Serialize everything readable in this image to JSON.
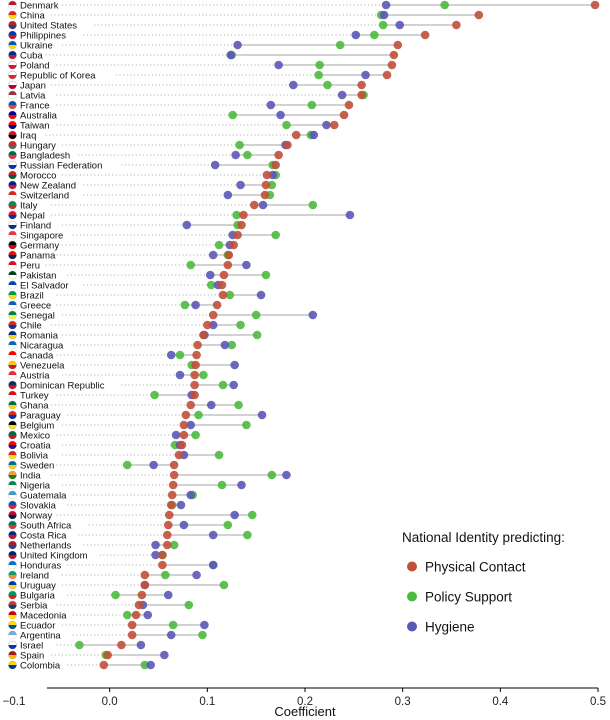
{
  "chart_data": {
    "type": "scatter",
    "xlabel": "Coefficient",
    "xlim": [
      -0.1,
      0.5
    ],
    "xticks": [
      -0.1,
      0.0,
      0.1,
      0.2,
      0.3,
      0.4,
      0.5
    ],
    "xtick_labels": [
      "−0.1",
      "0.0",
      "0.1",
      "0.2",
      "0.3",
      "0.4",
      "0.5"
    ],
    "legend": {
      "title": "National Identity predicting:",
      "placement": "bottom-right"
    },
    "series": [
      {
        "key": "physical",
        "name": "Physical Contact",
        "color": "#c0503a"
      },
      {
        "key": "policy",
        "name": "Policy Support",
        "color": "#4cba3f"
      },
      {
        "key": "hygiene",
        "name": "Hygiene",
        "color": "#5b58b6"
      }
    ],
    "countries": [
      {
        "name": "Denmark",
        "flag": [
          "#c8102e",
          "#ffffff"
        ],
        "physical": 0.497,
        "policy": 0.343,
        "hygiene": 0.283
      },
      {
        "name": "China",
        "flag": [
          "#de2910",
          "#ffde00"
        ],
        "physical": 0.378,
        "policy": 0.278,
        "hygiene": 0.281
      },
      {
        "name": "United States",
        "flag": [
          "#b22234",
          "#3c3b6e"
        ],
        "physical": 0.355,
        "policy": 0.28,
        "hygiene": 0.297
      },
      {
        "name": "Philippines",
        "flag": [
          "#0038a8",
          "#ce1126"
        ],
        "physical": 0.323,
        "policy": 0.271,
        "hygiene": 0.252
      },
      {
        "name": "Ukraine",
        "flag": [
          "#0057b7",
          "#ffd700"
        ],
        "physical": 0.295,
        "policy": 0.236,
        "hygiene": 0.131
      },
      {
        "name": "Cuba",
        "flag": [
          "#002a8f",
          "#cf142b"
        ],
        "physical": 0.291,
        "policy": 0.125,
        "hygiene": 0.124
      },
      {
        "name": "Poland",
        "flag": [
          "#ffffff",
          "#dc143c"
        ],
        "physical": 0.289,
        "policy": 0.215,
        "hygiene": 0.173
      },
      {
        "name": "Republic of Korea",
        "flag": [
          "#ffffff",
          "#cd2e3a"
        ],
        "physical": 0.284,
        "policy": 0.214,
        "hygiene": 0.262
      },
      {
        "name": "Japan",
        "flag": [
          "#ffffff",
          "#bc002d"
        ],
        "physical": 0.258,
        "policy": 0.223,
        "hygiene": 0.188
      },
      {
        "name": "Latvia",
        "flag": [
          "#9e3039",
          "#ffffff"
        ],
        "physical": 0.258,
        "policy": 0.26,
        "hygiene": 0.238
      },
      {
        "name": "France",
        "flag": [
          "#0055a4",
          "#ef4135"
        ],
        "physical": 0.245,
        "policy": 0.207,
        "hygiene": 0.165
      },
      {
        "name": "Australia",
        "flag": [
          "#00008b",
          "#ff0000"
        ],
        "physical": 0.24,
        "policy": 0.126,
        "hygiene": 0.175
      },
      {
        "name": "Taiwan",
        "flag": [
          "#fe0000",
          "#000095"
        ],
        "physical": 0.23,
        "policy": 0.181,
        "hygiene": 0.222
      },
      {
        "name": "Iraq",
        "flag": [
          "#ce1126",
          "#000000"
        ],
        "physical": 0.191,
        "policy": 0.206,
        "hygiene": 0.209
      },
      {
        "name": "Hungary",
        "flag": [
          "#ce2939",
          "#477050"
        ],
        "physical": 0.182,
        "policy": 0.133,
        "hygiene": 0.18
      },
      {
        "name": "Bangladesh",
        "flag": [
          "#006a4e",
          "#f42a41"
        ],
        "physical": 0.173,
        "policy": 0.141,
        "hygiene": 0.129
      },
      {
        "name": "Russian Federation",
        "flag": [
          "#ffffff",
          "#0039a6"
        ],
        "physical": 0.17,
        "policy": 0.167,
        "hygiene": 0.108
      },
      {
        "name": "Morocco",
        "flag": [
          "#c1272d",
          "#006233"
        ],
        "physical": 0.161,
        "policy": 0.17,
        "hygiene": 0.167
      },
      {
        "name": "New Zealand",
        "flag": [
          "#00247d",
          "#cc142b"
        ],
        "physical": 0.16,
        "policy": 0.166,
        "hygiene": 0.134
      },
      {
        "name": "Switzerland",
        "flag": [
          "#da291c",
          "#ffffff"
        ],
        "physical": 0.159,
        "policy": 0.164,
        "hygiene": 0.121
      },
      {
        "name": "Italy",
        "flag": [
          "#009246",
          "#ce2b37"
        ],
        "physical": 0.148,
        "policy": 0.208,
        "hygiene": 0.157
      },
      {
        "name": "Nepal",
        "flag": [
          "#dc143c",
          "#003893"
        ],
        "physical": 0.137,
        "policy": 0.13,
        "hygiene": 0.246
      },
      {
        "name": "Finland",
        "flag": [
          "#ffffff",
          "#003580"
        ],
        "physical": 0.135,
        "policy": 0.131,
        "hygiene": 0.079
      },
      {
        "name": "Singapore",
        "flag": [
          "#ef3340",
          "#ffffff"
        ],
        "physical": 0.131,
        "policy": 0.17,
        "hygiene": 0.126
      },
      {
        "name": "Germany",
        "flag": [
          "#000000",
          "#dd0000"
        ],
        "physical": 0.127,
        "policy": 0.112,
        "hygiene": 0.123
      },
      {
        "name": "Panama",
        "flag": [
          "#da121a",
          "#072357"
        ],
        "physical": 0.122,
        "policy": 0.121,
        "hygiene": 0.106
      },
      {
        "name": "Peru",
        "flag": [
          "#d91023",
          "#ffffff"
        ],
        "physical": 0.121,
        "policy": 0.083,
        "hygiene": 0.14
      },
      {
        "name": "Pakistan",
        "flag": [
          "#01411c",
          "#ffffff"
        ],
        "physical": 0.117,
        "policy": 0.16,
        "hygiene": 0.103
      },
      {
        "name": "El Salvador",
        "flag": [
          "#0047ab",
          "#ffffff"
        ],
        "physical": 0.115,
        "policy": 0.104,
        "hygiene": 0.111
      },
      {
        "name": "Brazil",
        "flag": [
          "#009c3b",
          "#ffdf00"
        ],
        "physical": 0.116,
        "policy": 0.123,
        "hygiene": 0.155
      },
      {
        "name": "Greece",
        "flag": [
          "#0d5eaf",
          "#ffffff"
        ],
        "physical": 0.11,
        "policy": 0.077,
        "hygiene": 0.088
      },
      {
        "name": "Senegal",
        "flag": [
          "#00853f",
          "#fdef42"
        ],
        "physical": 0.106,
        "policy": 0.15,
        "hygiene": 0.208
      },
      {
        "name": "Chile",
        "flag": [
          "#d52b1e",
          "#0039a6"
        ],
        "physical": 0.1,
        "policy": 0.134,
        "hygiene": 0.106
      },
      {
        "name": "Romania",
        "flag": [
          "#002b7f",
          "#fcd116"
        ],
        "physical": 0.096,
        "policy": 0.151,
        "hygiene": 0.097
      },
      {
        "name": "Nicaragua",
        "flag": [
          "#0067c6",
          "#ffffff"
        ],
        "physical": 0.09,
        "policy": 0.125,
        "hygiene": 0.118
      },
      {
        "name": "Canada",
        "flag": [
          "#ff0000",
          "#ffffff"
        ],
        "physical": 0.089,
        "policy": 0.072,
        "hygiene": 0.063
      },
      {
        "name": "Venezuela",
        "flag": [
          "#ffcc00",
          "#cf142b"
        ],
        "physical": 0.088,
        "policy": 0.084,
        "hygiene": 0.128
      },
      {
        "name": "Austria",
        "flag": [
          "#ed2939",
          "#ffffff"
        ],
        "physical": 0.087,
        "policy": 0.096,
        "hygiene": 0.072
      },
      {
        "name": "Dominican Republic",
        "flag": [
          "#002d62",
          "#ce1126"
        ],
        "physical": 0.087,
        "policy": 0.116,
        "hygiene": 0.127
      },
      {
        "name": "Turkey",
        "flag": [
          "#e30a17",
          "#ffffff"
        ],
        "physical": 0.087,
        "policy": 0.046,
        "hygiene": 0.084
      },
      {
        "name": "Ghana",
        "flag": [
          "#006b3f",
          "#fcd116"
        ],
        "physical": 0.083,
        "policy": 0.132,
        "hygiene": 0.104
      },
      {
        "name": "Paraguay",
        "flag": [
          "#d52b1e",
          "#0038a8"
        ],
        "physical": 0.078,
        "policy": 0.091,
        "hygiene": 0.156
      },
      {
        "name": "Belgium",
        "flag": [
          "#000000",
          "#fdda24"
        ],
        "physical": 0.076,
        "policy": 0.14,
        "hygiene": 0.083
      },
      {
        "name": "Mexico",
        "flag": [
          "#006847",
          "#ce1126"
        ],
        "physical": 0.076,
        "policy": 0.088,
        "hygiene": 0.068
      },
      {
        "name": "Croatia",
        "flag": [
          "#ff0000",
          "#171796"
        ],
        "physical": 0.074,
        "policy": 0.067,
        "hygiene": 0.072
      },
      {
        "name": "Bolivia",
        "flag": [
          "#d52b1e",
          "#f9e300"
        ],
        "physical": 0.071,
        "policy": 0.112,
        "hygiene": 0.076
      },
      {
        "name": "Sweden",
        "flag": [
          "#006aa7",
          "#fecc00"
        ],
        "physical": 0.066,
        "policy": 0.018,
        "hygiene": 0.045
      },
      {
        "name": "India",
        "flag": [
          "#ff9933",
          "#138808"
        ],
        "physical": 0.066,
        "policy": 0.166,
        "hygiene": 0.181
      },
      {
        "name": "Nigeria",
        "flag": [
          "#008751",
          "#ffffff"
        ],
        "physical": 0.065,
        "policy": 0.115,
        "hygiene": 0.135
      },
      {
        "name": "Guatemala",
        "flag": [
          "#4997d0",
          "#ffffff"
        ],
        "physical": 0.064,
        "policy": 0.085,
        "hygiene": 0.083
      },
      {
        "name": "Slovakia",
        "flag": [
          "#0b4ea2",
          "#ee1c25"
        ],
        "physical": 0.063,
        "policy": 0.064,
        "hygiene": 0.073
      },
      {
        "name": "Norway",
        "flag": [
          "#ba0c2f",
          "#00205b"
        ],
        "physical": 0.061,
        "policy": 0.146,
        "hygiene": 0.128
      },
      {
        "name": "South Africa",
        "flag": [
          "#007a4d",
          "#de3831"
        ],
        "physical": 0.06,
        "policy": 0.121,
        "hygiene": 0.076
      },
      {
        "name": "Costa Rica",
        "flag": [
          "#002b7f",
          "#ce1126"
        ],
        "physical": 0.059,
        "policy": 0.141,
        "hygiene": 0.106
      },
      {
        "name": "Netherlands",
        "flag": [
          "#ae1c28",
          "#21468b"
        ],
        "physical": 0.059,
        "policy": 0.066,
        "hygiene": 0.047
      },
      {
        "name": "United Kingdom",
        "flag": [
          "#012169",
          "#c8102e"
        ],
        "physical": 0.054,
        "policy": 0.054,
        "hygiene": 0.047
      },
      {
        "name": "Honduras",
        "flag": [
          "#0073cf",
          "#ffffff"
        ],
        "physical": 0.054,
        "policy": 0.106,
        "hygiene": 0.106
      },
      {
        "name": "Ireland",
        "flag": [
          "#169b62",
          "#ff883e"
        ],
        "physical": 0.036,
        "policy": 0.057,
        "hygiene": 0.089
      },
      {
        "name": "Uruguay",
        "flag": [
          "#0038a8",
          "#fcd116"
        ],
        "physical": 0.036,
        "policy": 0.117,
        "hygiene": 0.036
      },
      {
        "name": "Bulgaria",
        "flag": [
          "#00966e",
          "#d62612"
        ],
        "physical": 0.033,
        "policy": 0.006,
        "hygiene": 0.06
      },
      {
        "name": "Serbia",
        "flag": [
          "#c6363c",
          "#0c4076"
        ],
        "physical": 0.03,
        "policy": 0.081,
        "hygiene": 0.034
      },
      {
        "name": "Macedonia",
        "flag": [
          "#d20000",
          "#ffe600"
        ],
        "physical": 0.027,
        "policy": 0.018,
        "hygiene": 0.039
      },
      {
        "name": "Ecuador",
        "flag": [
          "#ffdd00",
          "#034ea2"
        ],
        "physical": 0.023,
        "policy": 0.065,
        "hygiene": 0.097
      },
      {
        "name": "Argentina",
        "flag": [
          "#74acdf",
          "#ffffff"
        ],
        "physical": 0.023,
        "policy": 0.095,
        "hygiene": 0.063
      },
      {
        "name": "Israel",
        "flag": [
          "#ffffff",
          "#0038b8"
        ],
        "physical": 0.012,
        "policy": -0.031,
        "hygiene": 0.032
      },
      {
        "name": "Spain",
        "flag": [
          "#aa151b",
          "#f1bf00"
        ],
        "physical": -0.002,
        "policy": -0.004,
        "hygiene": 0.056
      },
      {
        "name": "Colombia",
        "flag": [
          "#fcd116",
          "#003893"
        ],
        "physical": -0.006,
        "policy": 0.036,
        "hygiene": 0.042
      }
    ]
  }
}
